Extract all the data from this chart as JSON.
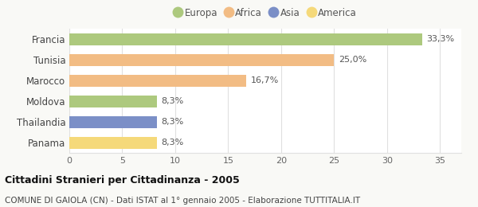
{
  "categories": [
    "Francia",
    "Tunisia",
    "Marocco",
    "Moldova",
    "Thailandia",
    "Panama"
  ],
  "values": [
    33.3,
    25.0,
    16.7,
    8.3,
    8.3,
    8.3
  ],
  "labels": [
    "33,3%",
    "25,0%",
    "16,7%",
    "8,3%",
    "8,3%",
    "8,3%"
  ],
  "colors": [
    "#adc97e",
    "#f2bc84",
    "#f2bc84",
    "#adc97e",
    "#7b8fc7",
    "#f5d97a"
  ],
  "legend": [
    {
      "label": "Europa",
      "color": "#adc97e"
    },
    {
      "label": "Africa",
      "color": "#f2bc84"
    },
    {
      "label": "Asia",
      "color": "#7b8fc7"
    },
    {
      "label": "America",
      "color": "#f5d97a"
    }
  ],
  "xlim": [
    0,
    37
  ],
  "xticks": [
    0,
    5,
    10,
    15,
    20,
    25,
    30,
    35
  ],
  "title_bold": "Cittadini Stranieri per Cittadinanza - 2005",
  "subtitle": "COMUNE DI GAIOLA (CN) - Dati ISTAT al 1° gennaio 2005 - Elaborazione TUTTITALIA.IT",
  "background_color": "#f9f9f6",
  "bar_background": "#ffffff",
  "grid_color": "#e0e0e0",
  "bar_height": 0.55
}
